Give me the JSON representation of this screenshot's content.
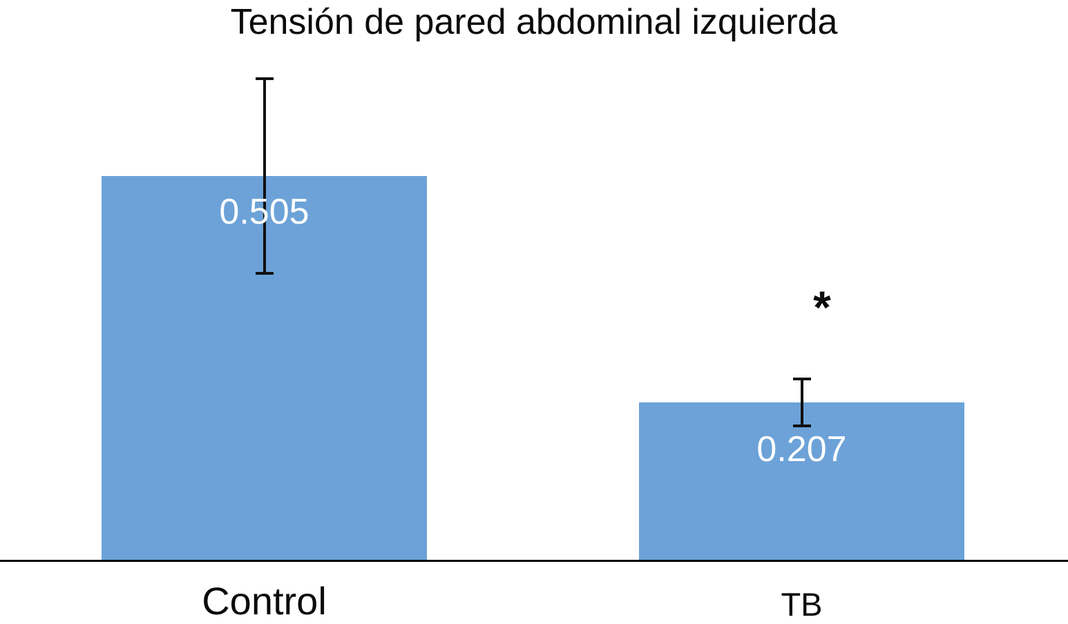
{
  "chart_data": {
    "type": "bar",
    "title": "Tensión de pared abdominal izquierda",
    "categories": [
      "Control",
      "TB"
    ],
    "values": [
      0.505,
      0.207
    ],
    "data_labels": [
      "0.505",
      "0.207"
    ],
    "error_bars": {
      "symmetric": true,
      "values": [
        0.13,
        0.033
      ]
    },
    "significance": [
      {
        "category": "TB",
        "marker": "*"
      }
    ],
    "xlabel": "",
    "ylabel": "",
    "ylim": [
      0,
      0.739
    ],
    "grid": false,
    "legend": "none",
    "y_axis_visible": false,
    "x_axis_line": true,
    "bar_color": "#6CA2D8",
    "data_label_color": "#FFFFFF",
    "axis_color": "#000000",
    "text_color": "#0B0B0B"
  }
}
